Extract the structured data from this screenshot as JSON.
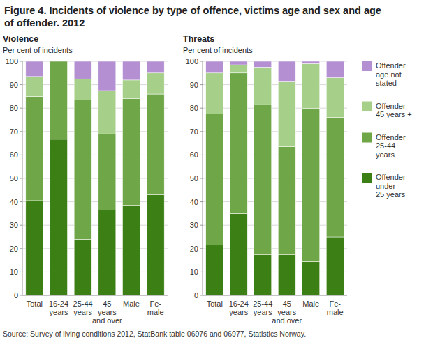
{
  "title": "Figure 4. Incidents of violence by type of offence, victims age and sex and age\nof offender. 2012",
  "source": "Source: Survey of living conditions 2012, StatBank table 06976 and 06977, Statistics Norway.",
  "chart_data": [
    {
      "type": "bar",
      "stacked": true,
      "grid": true,
      "title": "Violence",
      "subtitle": "Per cent of incidents",
      "categories": [
        "Total",
        "16-24\nyears",
        "25-44\nyears",
        "45\nyears\nand over",
        "Male",
        "Fe-\nmale"
      ],
      "series": [
        {
          "color": "#3c7f14",
          "values": [
            40.5,
            66.7,
            24,
            36.5,
            38.5,
            43
          ]
        },
        {
          "color": "#6ea648",
          "values": [
            44.5,
            33.3,
            59.5,
            32.5,
            45.5,
            43
          ]
        },
        {
          "color": "#a6d08a",
          "values": [
            8.5,
            0,
            9,
            18.5,
            8,
            9
          ]
        },
        {
          "color": "#b48fd1",
          "values": [
            6.5,
            0,
            7.5,
            12.5,
            8,
            5
          ]
        }
      ],
      "ylim": [
        0,
        100
      ],
      "yticks": [
        0,
        10,
        20,
        30,
        40,
        50,
        60,
        70,
        80,
        90,
        100
      ]
    },
    {
      "type": "bar",
      "stacked": true,
      "grid": true,
      "legend": "right",
      "title": "Threats",
      "subtitle": "Per cent of incidents",
      "categories": [
        "Total",
        "16-24\nyears",
        "25-44\nyears",
        "45\nyears\nand over",
        "Male",
        "Fe-\nmale"
      ],
      "series": [
        {
          "name": "Offender\nunder\n25 years",
          "color": "#3c7f14",
          "values": [
            21.5,
            35,
            17.5,
            17.5,
            14.5,
            25
          ]
        },
        {
          "name": "Offender\n25-44\nyears",
          "color": "#6ea648",
          "values": [
            56,
            60,
            64,
            46,
            65.5,
            51
          ]
        },
        {
          "name": "Offender\n45 years +",
          "color": "#a6d08a",
          "values": [
            17.5,
            3.5,
            16,
            28,
            19,
            17
          ]
        },
        {
          "name": "Offender\nage not\nstated",
          "color": "#b48fd1",
          "values": [
            5,
            1.5,
            2.5,
            8.5,
            1,
            7
          ]
        }
      ],
      "ylim": [
        0,
        100
      ],
      "yticks": [
        0,
        10,
        20,
        30,
        40,
        50,
        60,
        70,
        80,
        90,
        100
      ]
    }
  ]
}
